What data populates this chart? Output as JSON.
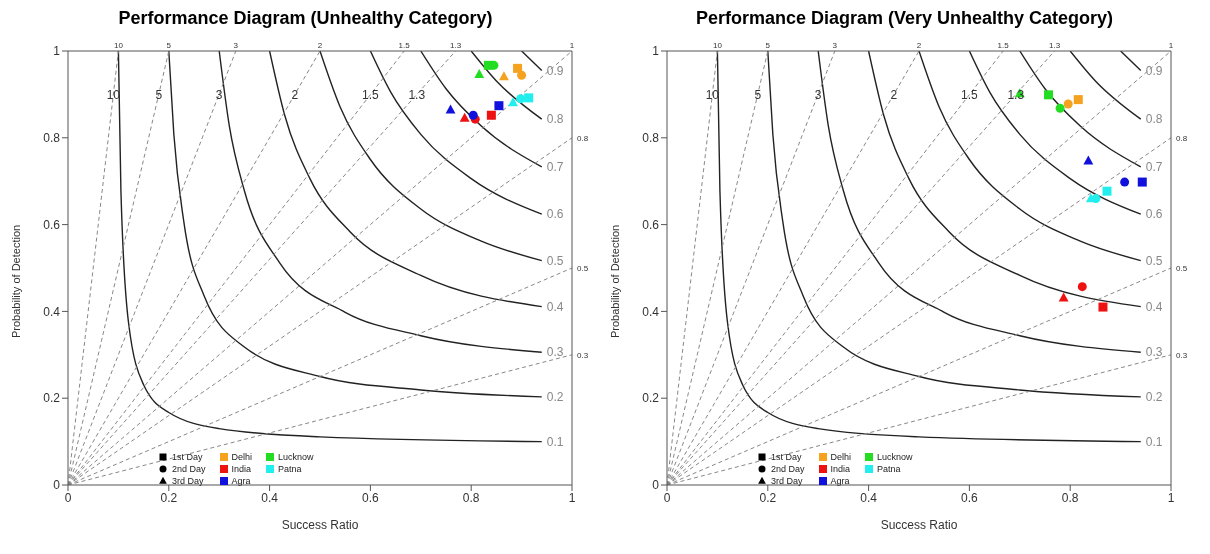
{
  "chart_data": [
    {
      "type": "scatter",
      "title": "Performance Diagram (Unhealthy Category)",
      "xlabel": "Success Ratio",
      "ylabel": "Probability of Detection",
      "xlim": [
        0,
        1
      ],
      "ylim": [
        0,
        1
      ],
      "xticks": [
        0,
        0.2,
        0.4,
        0.6,
        0.8,
        1
      ],
      "yticks": [
        0,
        0.2,
        0.4,
        0.6,
        0.8,
        1
      ],
      "legend": "bottom",
      "marker": [
        "square",
        "circle",
        "triangle"
      ],
      "series": [
        {
          "name": "Delhi",
          "color": "#f5a21f",
          "x": [
            0.892,
            0.9,
            0.865
          ],
          "values": [
            0.96,
            0.944,
            0.941
          ]
        },
        {
          "name": "India",
          "color": "#ee1111",
          "x": [
            0.84,
            0.808,
            0.787
          ],
          "values": [
            0.852,
            0.843,
            0.845
          ]
        },
        {
          "name": "Agra",
          "color": "#1111dd",
          "x": [
            0.855,
            0.804,
            0.759
          ],
          "values": [
            0.874,
            0.852,
            0.864
          ]
        },
        {
          "name": "Lucknow",
          "color": "#22dd22",
          "x": [
            0.834,
            0.845,
            0.816
          ],
          "values": [
            0.967,
            0.967,
            0.946
          ]
        },
        {
          "name": "Patna",
          "color": "#22eeee",
          "x": [
            0.914,
            0.898,
            0.883
          ],
          "values": [
            0.892,
            0.89,
            0.881
          ]
        },
        {
          "type": "line",
          "color": "#222222",
          "x": [
            0.1,
            0.105,
            0.12,
            0.15,
            0.2,
            0.3,
            0.5,
            0.94
          ],
          "values": [
            1,
            0.678,
            0.375,
            0.231,
            0.167,
            0.13,
            0.111,
            0.1
          ]
        },
        {
          "type": "line",
          "color": "#222222",
          "x": [
            0.2,
            0.21,
            0.23,
            0.27,
            0.35,
            0.5,
            0.7,
            0.94
          ],
          "values": [
            1,
            0.808,
            0.605,
            0.436,
            0.318,
            0.25,
            0.219,
            0.203
          ]
        },
        {
          "type": "line",
          "color": "#222222",
          "x": [
            0.3,
            0.32,
            0.35,
            0.42,
            0.55,
            0.7,
            0.94
          ],
          "values": [
            1,
            0.828,
            0.678,
            0.512,
            0.398,
            0.344,
            0.306
          ]
        },
        {
          "type": "line",
          "color": "#222222",
          "x": [
            0.4,
            0.43,
            0.48,
            0.56,
            0.7,
            0.94
          ],
          "values": [
            1,
            0.852,
            0.706,
            0.583,
            0.483,
            0.411
          ]
        },
        {
          "type": "line",
          "color": "#222222",
          "x": [
            0.5,
            0.54,
            0.6,
            0.7,
            0.82,
            0.94
          ],
          "values": [
            1,
            0.871,
            0.75,
            0.636,
            0.562,
            0.517
          ]
        },
        {
          "type": "line",
          "color": "#222222",
          "x": [
            0.6,
            0.64,
            0.7,
            0.8,
            0.94
          ],
          "values": [
            1,
            0.906,
            0.808,
            0.706,
            0.624
          ]
        },
        {
          "type": "line",
          "color": "#222222",
          "x": [
            0.7,
            0.75,
            0.82,
            0.94
          ],
          "values": [
            1,
            0.913,
            0.827,
            0.733
          ]
        },
        {
          "type": "line",
          "color": "#222222",
          "x": [
            0.8,
            0.85,
            0.94
          ],
          "values": [
            1,
            0.931,
            0.843
          ]
        },
        {
          "type": "line",
          "color": "#222222",
          "x": [
            0.9,
            0.94
          ],
          "values": [
            1,
            0.955
          ]
        },
        {
          "type": "line",
          "color": "#888888",
          "line_style": "dashed",
          "x": [
            0,
            0.1
          ],
          "values": [
            0,
            1
          ]
        },
        {
          "type": "line",
          "color": "#888888",
          "line_style": "dashed",
          "x": [
            0,
            0.2
          ],
          "values": [
            0,
            1
          ]
        },
        {
          "type": "line",
          "color": "#888888",
          "line_style": "dashed",
          "x": [
            0,
            0.333
          ],
          "values": [
            0,
            1
          ]
        },
        {
          "type": "line",
          "color": "#888888",
          "line_style": "dashed",
          "x": [
            0,
            0.5
          ],
          "values": [
            0,
            1
          ]
        },
        {
          "type": "line",
          "color": "#888888",
          "line_style": "dashed",
          "x": [
            0,
            0.667
          ],
          "values": [
            0,
            1
          ]
        },
        {
          "type": "line",
          "color": "#888888",
          "line_style": "dashed",
          "x": [
            0,
            0.769
          ],
          "values": [
            0,
            1
          ]
        },
        {
          "type": "line",
          "color": "#888888",
          "line_style": "dashed",
          "x": [
            0,
            1
          ],
          "values": [
            0,
            1
          ]
        },
        {
          "type": "line",
          "color": "#888888",
          "line_style": "dashed",
          "x": [
            0,
            1
          ],
          "values": [
            0,
            0.8
          ]
        },
        {
          "type": "line",
          "color": "#888888",
          "line_style": "dashed",
          "x": [
            0,
            1
          ],
          "values": [
            0,
            0.5
          ]
        },
        {
          "type": "line",
          "color": "#888888",
          "line_style": "dashed",
          "x": [
            0,
            1
          ],
          "values": [
            0,
            0.3
          ]
        }
      ],
      "annotations": [
        "1st Day",
        "2nd Day",
        "3rd Day",
        {
          "text": "0.1",
          "x": 0.94,
          "y": 0.1
        },
        {
          "text": "0.2",
          "x": 0.94,
          "y": 0.203
        },
        {
          "text": "0.3",
          "x": 0.94,
          "y": 0.306
        },
        {
          "text": "0.4",
          "x": 0.94,
          "y": 0.411
        },
        {
          "text": "0.5",
          "x": 0.94,
          "y": 0.517
        },
        {
          "text": "0.6",
          "x": 0.94,
          "y": 0.624
        },
        {
          "text": "0.7",
          "x": 0.94,
          "y": 0.733
        },
        {
          "text": "0.8",
          "x": 0.94,
          "y": 0.843
        },
        {
          "text": "0.9",
          "x": 0.94,
          "y": 0.955
        },
        {
          "text": "10",
          "x": 0.09,
          "y": 0.9
        },
        {
          "text": "5",
          "x": 0.18,
          "y": 0.9
        },
        {
          "text": "3",
          "x": 0.3,
          "y": 0.9
        },
        {
          "text": "2",
          "x": 0.45,
          "y": 0.9
        },
        {
          "text": "1.5",
          "x": 0.6,
          "y": 0.9
        },
        {
          "text": "1.3",
          "x": 0.692,
          "y": 0.9
        },
        {
          "text": "10",
          "x": 0.1,
          "y": 1
        },
        {
          "text": "5",
          "x": 0.2,
          "y": 1
        },
        {
          "text": "3",
          "x": 0.333,
          "y": 1
        },
        {
          "text": "2",
          "x": 0.5,
          "y": 1
        },
        {
          "text": "1.5",
          "x": 0.667,
          "y": 1
        },
        {
          "text": "1.3",
          "x": 0.769,
          "y": 1
        },
        {
          "text": "1",
          "x": 1,
          "y": 1
        },
        {
          "text": "0.8",
          "x": 1,
          "y": 0.8
        },
        {
          "text": "0.5",
          "x": 1,
          "y": 0.5
        },
        {
          "text": "0.3",
          "x": 1,
          "y": 0.3
        }
      ]
    },
    {
      "type": "scatter",
      "title": "Performance Diagram (Very Unhealthy Category)",
      "xlabel": "Success Ratio",
      "ylabel": "Probability of Detection",
      "xlim": [
        0,
        1
      ],
      "ylim": [
        0,
        1
      ],
      "xticks": [
        0,
        0.2,
        0.4,
        0.6,
        0.8,
        1
      ],
      "yticks": [
        0,
        0.2,
        0.4,
        0.6,
        0.8,
        1
      ],
      "legend": "bottom",
      "marker": [
        "square",
        "circle",
        "triangle"
      ],
      "series": [
        {
          "name": "Delhi",
          "color": "#f5a21f",
          "x": [
            0.816,
            0.796,
            null
          ],
          "values": [
            0.888,
            0.878,
            null
          ]
        },
        {
          "name": "India",
          "color": "#ee1111",
          "x": [
            0.865,
            0.824,
            0.787
          ],
          "values": [
            0.41,
            0.457,
            0.431
          ]
        },
        {
          "name": "Agra",
          "color": "#1111dd",
          "x": [
            0.943,
            0.908,
            0.836
          ],
          "values": [
            0.698,
            0.698,
            0.747
          ]
        },
        {
          "name": "Lucknow",
          "color": "#22dd22",
          "x": [
            0.757,
            0.78,
            0.7
          ],
          "values": [
            0.899,
            0.868,
            0.902
          ]
        },
        {
          "name": "Patna",
          "color": "#22eeee",
          "x": [
            0.873,
            0.851,
            0.841
          ],
          "values": [
            0.677,
            0.66,
            0.66
          ]
        },
        {
          "type": "line",
          "color": "#222222",
          "x": [
            0.1,
            0.105,
            0.12,
            0.15,
            0.2,
            0.3,
            0.5,
            0.94
          ],
          "values": [
            1,
            0.678,
            0.375,
            0.231,
            0.167,
            0.13,
            0.111,
            0.1
          ]
        },
        {
          "type": "line",
          "color": "#222222",
          "x": [
            0.2,
            0.21,
            0.23,
            0.27,
            0.35,
            0.5,
            0.7,
            0.94
          ],
          "values": [
            1,
            0.808,
            0.605,
            0.436,
            0.318,
            0.25,
            0.219,
            0.203
          ]
        },
        {
          "type": "line",
          "color": "#222222",
          "x": [
            0.3,
            0.32,
            0.35,
            0.42,
            0.55,
            0.7,
            0.94
          ],
          "values": [
            1,
            0.828,
            0.678,
            0.512,
            0.398,
            0.344,
            0.306
          ]
        },
        {
          "type": "line",
          "color": "#222222",
          "x": [
            0.4,
            0.43,
            0.48,
            0.56,
            0.7,
            0.94
          ],
          "values": [
            1,
            0.852,
            0.706,
            0.583,
            0.483,
            0.411
          ]
        },
        {
          "type": "line",
          "color": "#222222",
          "x": [
            0.5,
            0.54,
            0.6,
            0.7,
            0.82,
            0.94
          ],
          "values": [
            1,
            0.871,
            0.75,
            0.636,
            0.562,
            0.517
          ]
        },
        {
          "type": "line",
          "color": "#222222",
          "x": [
            0.6,
            0.64,
            0.7,
            0.8,
            0.94
          ],
          "values": [
            1,
            0.906,
            0.808,
            0.706,
            0.624
          ]
        },
        {
          "type": "line",
          "color": "#222222",
          "x": [
            0.7,
            0.75,
            0.82,
            0.94
          ],
          "values": [
            1,
            0.913,
            0.827,
            0.733
          ]
        },
        {
          "type": "line",
          "color": "#222222",
          "x": [
            0.8,
            0.85,
            0.94
          ],
          "values": [
            1,
            0.931,
            0.843
          ]
        },
        {
          "type": "line",
          "color": "#222222",
          "x": [
            0.9,
            0.94
          ],
          "values": [
            1,
            0.955
          ]
        },
        {
          "type": "line",
          "color": "#888888",
          "line_style": "dashed",
          "x": [
            0,
            0.1
          ],
          "values": [
            0,
            1
          ]
        },
        {
          "type": "line",
          "color": "#888888",
          "line_style": "dashed",
          "x": [
            0,
            0.2
          ],
          "values": [
            0,
            1
          ]
        },
        {
          "type": "line",
          "color": "#888888",
          "line_style": "dashed",
          "x": [
            0,
            0.333
          ],
          "values": [
            0,
            1
          ]
        },
        {
          "type": "line",
          "color": "#888888",
          "line_style": "dashed",
          "x": [
            0,
            0.5
          ],
          "values": [
            0,
            1
          ]
        },
        {
          "type": "line",
          "color": "#888888",
          "line_style": "dashed",
          "x": [
            0,
            0.667
          ],
          "values": [
            0,
            1
          ]
        },
        {
          "type": "line",
          "color": "#888888",
          "line_style": "dashed",
          "x": [
            0,
            0.769
          ],
          "values": [
            0,
            1
          ]
        },
        {
          "type": "line",
          "color": "#888888",
          "line_style": "dashed",
          "x": [
            0,
            1
          ],
          "values": [
            0,
            1
          ]
        },
        {
          "type": "line",
          "color": "#888888",
          "line_style": "dashed",
          "x": [
            0,
            1
          ],
          "values": [
            0,
            0.8
          ]
        },
        {
          "type": "line",
          "color": "#888888",
          "line_style": "dashed",
          "x": [
            0,
            1
          ],
          "values": [
            0,
            0.5
          ]
        },
        {
          "type": "line",
          "color": "#888888",
          "line_style": "dashed",
          "x": [
            0,
            1
          ],
          "values": [
            0,
            0.3
          ]
        }
      ],
      "annotations": [
        "1st Day",
        "2nd Day",
        "3rd Day",
        {
          "text": "0.1",
          "x": 0.94,
          "y": 0.1
        },
        {
          "text": "0.2",
          "x": 0.94,
          "y": 0.203
        },
        {
          "text": "0.3",
          "x": 0.94,
          "y": 0.306
        },
        {
          "text": "0.4",
          "x": 0.94,
          "y": 0.411
        },
        {
          "text": "0.5",
          "x": 0.94,
          "y": 0.517
        },
        {
          "text": "0.6",
          "x": 0.94,
          "y": 0.624
        },
        {
          "text": "0.7",
          "x": 0.94,
          "y": 0.733
        },
        {
          "text": "0.8",
          "x": 0.94,
          "y": 0.843
        },
        {
          "text": "0.9",
          "x": 0.94,
          "y": 0.955
        },
        {
          "text": "10",
          "x": 0.09,
          "y": 0.9
        },
        {
          "text": "5",
          "x": 0.18,
          "y": 0.9
        },
        {
          "text": "3",
          "x": 0.3,
          "y": 0.9
        },
        {
          "text": "2",
          "x": 0.45,
          "y": 0.9
        },
        {
          "text": "1.5",
          "x": 0.6,
          "y": 0.9
        },
        {
          "text": "1.3",
          "x": 0.692,
          "y": 0.9
        },
        {
          "text": "10",
          "x": 0.1,
          "y": 1
        },
        {
          "text": "5",
          "x": 0.2,
          "y": 1
        },
        {
          "text": "3",
          "x": 0.333,
          "y": 1
        },
        {
          "text": "2",
          "x": 0.5,
          "y": 1
        },
        {
          "text": "1.5",
          "x": 0.667,
          "y": 1
        },
        {
          "text": "1.3",
          "x": 0.769,
          "y": 1
        },
        {
          "text": "1",
          "x": 1,
          "y": 1
        },
        {
          "text": "0.8",
          "x": 1,
          "y": 0.8
        },
        {
          "text": "0.5",
          "x": 1,
          "y": 0.5
        },
        {
          "text": "0.3",
          "x": 1,
          "y": 0.3
        }
      ]
    }
  ]
}
